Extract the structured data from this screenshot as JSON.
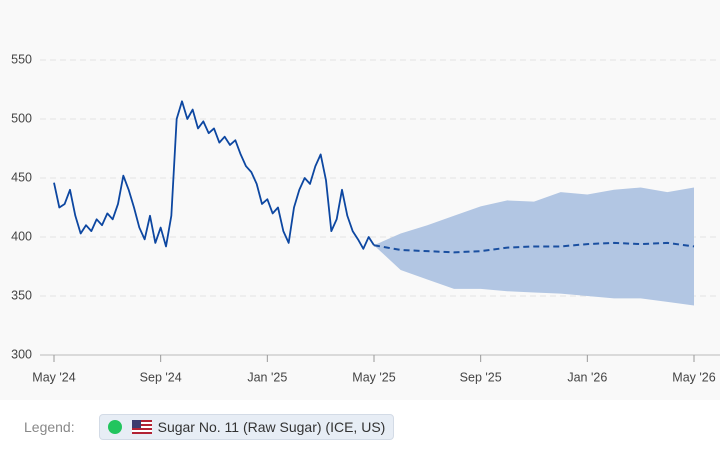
{
  "chart_data": {
    "type": "line",
    "legend_title": "Legend:",
    "series": [
      {
        "name": "Sugar No. 11 (Raw Sugar) (ICE, US)",
        "color": "#0d47a1",
        "x": [
          0,
          0.2,
          0.4,
          0.6,
          0.8,
          1.0,
          1.2,
          1.4,
          1.6,
          1.8,
          2.0,
          2.2,
          2.4,
          2.6,
          2.8,
          3.0,
          3.2,
          3.4,
          3.6,
          3.8,
          4.0,
          4.2,
          4.4,
          4.6,
          4.8,
          5.0,
          5.2,
          5.4,
          5.6,
          5.8,
          6.0,
          6.2,
          6.4,
          6.6,
          6.8,
          7.0,
          7.2,
          7.4,
          7.6,
          7.8,
          8.0,
          8.2,
          8.4,
          8.6,
          8.8,
          9.0,
          9.2,
          9.4,
          9.6,
          9.8,
          10.0,
          10.2,
          10.4,
          10.6,
          10.8,
          11.0,
          11.2,
          11.4,
          11.6,
          11.8,
          12.0
        ],
        "values": [
          446,
          425,
          428,
          440,
          418,
          403,
          410,
          405,
          415,
          410,
          420,
          415,
          428,
          452,
          440,
          425,
          408,
          398,
          418,
          395,
          408,
          392,
          418,
          500,
          515,
          500,
          508,
          492,
          498,
          488,
          492,
          480,
          485,
          478,
          482,
          470,
          460,
          455,
          445,
          428,
          432,
          420,
          425,
          405,
          395,
          425,
          440,
          450,
          445,
          460,
          470,
          448,
          405,
          415,
          440,
          418,
          405,
          398,
          390,
          400,
          393
        ]
      }
    ],
    "forecast": {
      "color": "#1a4fa0",
      "band_color": "#aec3e2",
      "x": [
        12,
        13,
        14,
        15,
        16,
        17,
        18,
        19,
        20,
        21,
        22,
        23,
        24
      ],
      "values": [
        393,
        389,
        388,
        387,
        388,
        391,
        392,
        392,
        394,
        395,
        394,
        395,
        392
      ],
      "upper": [
        393,
        403,
        410,
        418,
        426,
        431,
        430,
        438,
        436,
        440,
        442,
        438,
        442
      ],
      "lower": [
        393,
        372,
        364,
        356,
        356,
        354,
        353,
        352,
        350,
        348,
        348,
        345,
        342
      ]
    },
    "xlim": [
      0,
      24
    ],
    "xticks": [
      {
        "value": 0,
        "label": "May '24"
      },
      {
        "value": 4,
        "label": "Sep '24"
      },
      {
        "value": 8,
        "label": "Jan '25"
      },
      {
        "value": 12,
        "label": "May '25"
      },
      {
        "value": 16,
        "label": "Sep '25"
      },
      {
        "value": 20,
        "label": "Jan '26"
      },
      {
        "value": 24,
        "label": "May '26"
      }
    ],
    "ylim": [
      300,
      550
    ],
    "yticks": [
      300,
      350,
      400,
      450,
      500,
      550
    ],
    "grid": true
  }
}
